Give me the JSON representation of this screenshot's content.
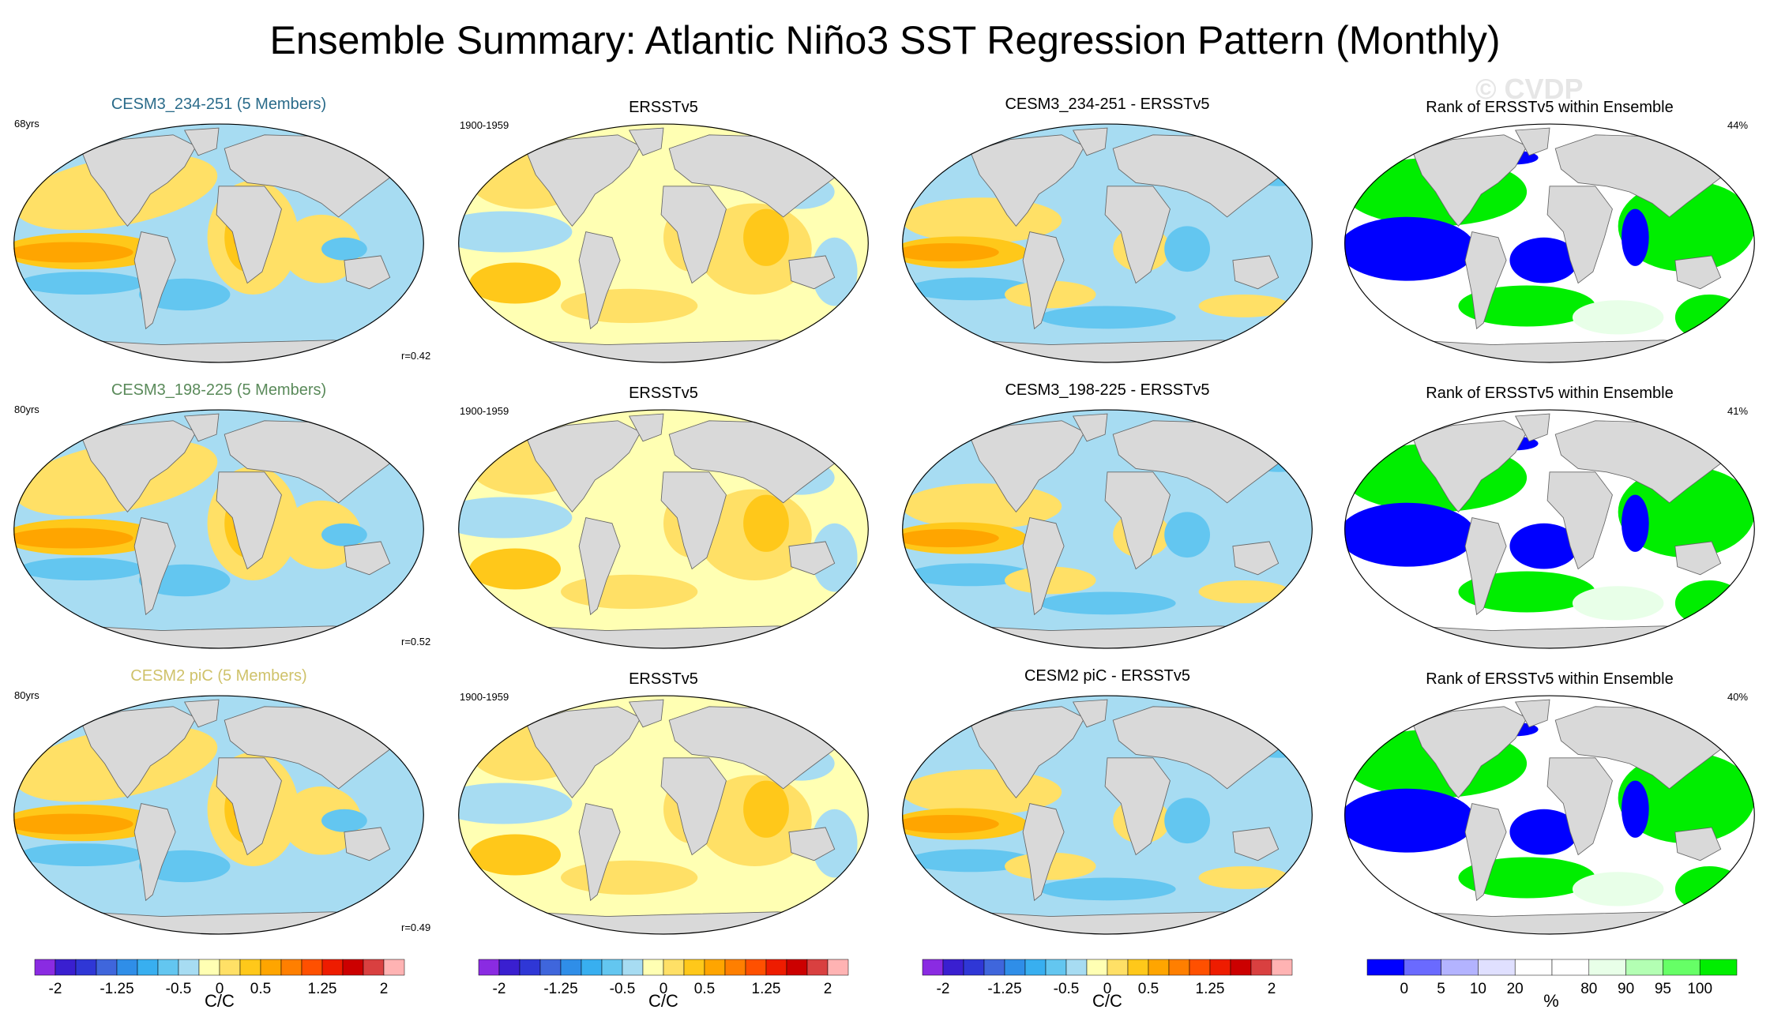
{
  "title": "Ensemble Summary: Atlantic Niño3 SST Regression Pattern (Monthly)",
  "watermark": "© CVDP",
  "rows": [
    {
      "model": {
        "title": "CESM3_234-251 (5 Members)",
        "color": "#2a6b8a",
        "years": "68yrs",
        "r": "r=0.42"
      },
      "obs": {
        "title": "ERSSTv5",
        "years": "1900-1959"
      },
      "diff": {
        "title": "CESM3_234-251 - ERSSTv5"
      },
      "rank": {
        "title": "Rank of ERSSTv5 within Ensemble",
        "pct": "44%"
      }
    },
    {
      "model": {
        "title": "CESM3_198-225 (5 Members)",
        "color": "#5a8a5a",
        "years": "80yrs",
        "r": "r=0.52"
      },
      "obs": {
        "title": "ERSSTv5",
        "years": "1900-1959"
      },
      "diff": {
        "title": "CESM3_198-225 - ERSSTv5"
      },
      "rank": {
        "title": "Rank of ERSSTv5 within Ensemble",
        "pct": "41%"
      }
    },
    {
      "model": {
        "title": "CESM2 piC (5 Members)",
        "color": "#cfc26a",
        "years": "80yrs",
        "r": "r=0.49"
      },
      "obs": {
        "title": "ERSSTv5",
        "years": "1900-1959"
      },
      "diff": {
        "title": "CESM2 piC - ERSSTv5"
      },
      "rank": {
        "title": "Rank of ERSSTv5 within Ensemble",
        "pct": "40%"
      }
    }
  ],
  "sst_colorbar": {
    "colors": [
      "#8a2be2",
      "#3a1fd0",
      "#2f37d6",
      "#3f66dc",
      "#2f8ee8",
      "#38aff0",
      "#63c6f0",
      "#a7dcf2",
      "#ffffb3",
      "#ffe066",
      "#ffc81a",
      "#ffa500",
      "#ff7f00",
      "#ff5000",
      "#ee1c00",
      "#cc0000",
      "#d94040",
      "#ffb3b3"
    ],
    "ticks": [
      "-2",
      "-1.25",
      "-0.5",
      "0",
      "0.5",
      "1.25",
      "2"
    ],
    "tick_index": [
      1,
      4,
      7,
      9,
      11,
      14,
      17
    ],
    "unit": "C/C"
  },
  "rank_colorbar": {
    "colors": [
      "#0000ff",
      "#6a6aff",
      "#b3b3ff",
      "#e0e0ff",
      "#ffffff",
      "#ffffff",
      "#e8ffe8",
      "#b3ffb3",
      "#66ff66",
      "#00ee00"
    ],
    "ticks": [
      "0",
      "5",
      "10",
      "20",
      "80",
      "90",
      "95",
      "100"
    ],
    "tick_index": [
      1,
      2,
      3,
      4,
      6,
      7,
      8,
      9
    ],
    "unit": "%"
  }
}
